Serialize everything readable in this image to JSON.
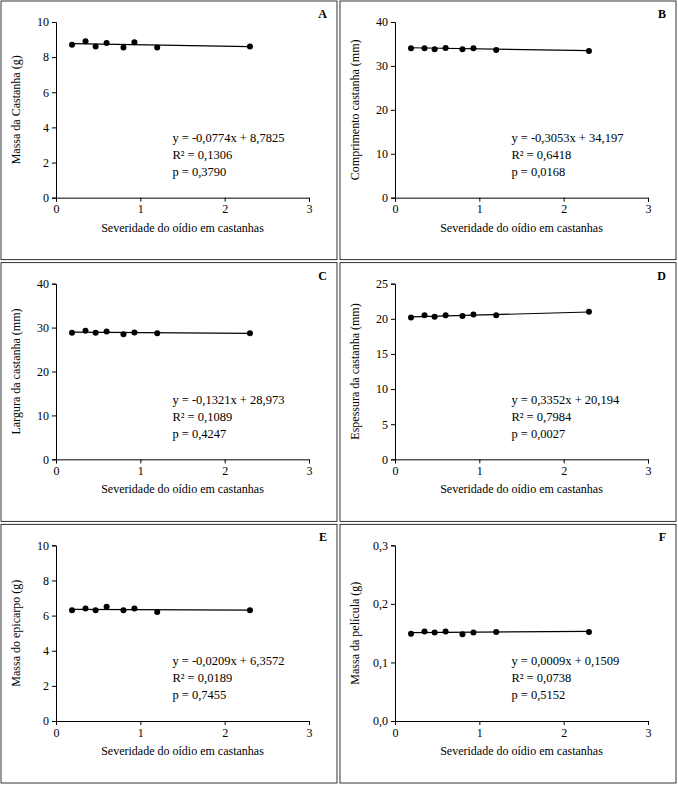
{
  "chart_data": [
    {
      "type": "scatter",
      "title": "A",
      "x_label": "Severidade do oídio em castanhas",
      "y_label": "Massa da Castanha (g)",
      "xlim": [
        0,
        3
      ],
      "xticks": [
        0,
        1,
        2,
        3
      ],
      "ylim": [
        0,
        10
      ],
      "yticks": [
        0,
        2,
        4,
        6,
        8,
        10
      ],
      "annotations": [
        "y = -0,0774x + 8,7825",
        "R² = 0,1306",
        "p = 0,3790"
      ],
      "series": [
        {
          "type": "scatter",
          "marker": "circle",
          "color": "#000000",
          "x": [
            0.19,
            0.35,
            0.47,
            0.6,
            0.8,
            0.93,
            1.2,
            2.3
          ],
          "values": [
            8.7,
            8.9,
            8.6,
            8.8,
            8.55,
            8.85,
            8.55,
            8.6
          ]
        },
        {
          "type": "line",
          "line_style": "solid",
          "color": "#000000",
          "x": [
            0.19,
            2.3
          ],
          "values": [
            8.77,
            8.6
          ]
        }
      ]
    },
    {
      "type": "scatter",
      "title": "B",
      "x_label": "Severidade do oídio em castanhas",
      "y_label": "Comprimento castanha (mm)",
      "xlim": [
        0,
        3
      ],
      "xticks": [
        0,
        1,
        2,
        3
      ],
      "ylim": [
        0,
        40
      ],
      "yticks": [
        0,
        10,
        20,
        30,
        40
      ],
      "annotations": [
        "y = -0,3053x + 34,197",
        "R² = 0,6418",
        "p = 0,0168"
      ],
      "series": [
        {
          "type": "scatter",
          "marker": "circle",
          "color": "#000000",
          "x": [
            0.19,
            0.35,
            0.47,
            0.6,
            0.8,
            0.93,
            1.2,
            2.3
          ],
          "values": [
            34.0,
            34.0,
            33.8,
            34.1,
            33.8,
            34.0,
            33.6,
            33.4
          ]
        },
        {
          "type": "line",
          "line_style": "solid",
          "color": "#000000",
          "x": [
            0.19,
            2.3
          ],
          "values": [
            34.14,
            33.49
          ]
        }
      ]
    },
    {
      "type": "scatter",
      "title": "C",
      "x_label": "Severidade do oídio em castanhas",
      "y_label": "Largura da castanha (mm)",
      "xlim": [
        0,
        3
      ],
      "xticks": [
        0,
        1,
        2,
        3
      ],
      "ylim": [
        0,
        40
      ],
      "yticks": [
        0,
        10,
        20,
        30,
        40
      ],
      "annotations": [
        "y = -0,1321x + 28,973",
        "R² = 0,1089",
        "p = 0,4247"
      ],
      "series": [
        {
          "type": "scatter",
          "marker": "circle",
          "color": "#000000",
          "x": [
            0.19,
            0.35,
            0.47,
            0.6,
            0.8,
            0.93,
            1.2,
            2.3
          ],
          "values": [
            28.8,
            29.3,
            28.8,
            29.1,
            28.5,
            28.9,
            28.7,
            28.7
          ]
        },
        {
          "type": "line",
          "line_style": "solid",
          "color": "#000000",
          "x": [
            0.19,
            2.3
          ],
          "values": [
            28.95,
            28.67
          ]
        }
      ]
    },
    {
      "type": "scatter",
      "title": "D",
      "x_label": "Severidade do oídio em castanhas",
      "y_label": "Espessura da castanha (mm)",
      "xlim": [
        0,
        3
      ],
      "xticks": [
        0,
        1,
        2,
        3
      ],
      "ylim": [
        0,
        25
      ],
      "yticks": [
        0,
        5,
        10,
        15,
        20,
        25
      ],
      "annotations": [
        "y = 0,3352x + 20,194",
        "R² = 0,7984",
        "p = 0,0027"
      ],
      "series": [
        {
          "type": "scatter",
          "marker": "circle",
          "color": "#000000",
          "x": [
            0.19,
            0.35,
            0.47,
            0.6,
            0.8,
            0.93,
            1.2,
            2.3
          ],
          "values": [
            20.2,
            20.5,
            20.3,
            20.5,
            20.4,
            20.6,
            20.5,
            21.0
          ]
        },
        {
          "type": "line",
          "line_style": "solid",
          "color": "#000000",
          "x": [
            0.19,
            2.3
          ],
          "values": [
            20.26,
            20.97
          ]
        }
      ]
    },
    {
      "type": "scatter",
      "title": "E",
      "x_label": "Severidade do oídio em castanhas",
      "y_label": "Massa do epicarpo (g)",
      "xlim": [
        0,
        3
      ],
      "xticks": [
        0,
        1,
        2,
        3
      ],
      "ylim": [
        0,
        10
      ],
      "yticks": [
        0,
        2,
        4,
        6,
        8,
        10
      ],
      "annotations": [
        "y = -0,0209x + 6,3572",
        "R² = 0,0189",
        "p = 0,7455"
      ],
      "series": [
        {
          "type": "scatter",
          "marker": "circle",
          "color": "#000000",
          "x": [
            0.19,
            0.35,
            0.47,
            0.6,
            0.8,
            0.93,
            1.2,
            2.3
          ],
          "values": [
            6.3,
            6.4,
            6.3,
            6.5,
            6.3,
            6.4,
            6.2,
            6.3
          ]
        },
        {
          "type": "line",
          "line_style": "solid",
          "color": "#000000",
          "x": [
            0.19,
            2.3
          ],
          "values": [
            6.35,
            6.31
          ]
        }
      ]
    },
    {
      "type": "scatter",
      "title": "F",
      "x_label": "Severidade do oídio em castanhas",
      "y_label": "Massa da película (g)",
      "xlim": [
        0,
        3
      ],
      "xticks": [
        0,
        1,
        2,
        3
      ],
      "ylim": [
        0,
        0.3
      ],
      "yticks": [
        {
          "value": 0,
          "label": "0,0"
        },
        {
          "value": 0.1,
          "label": "0,1"
        },
        {
          "value": 0.2,
          "label": "0,2"
        },
        {
          "value": 0.3,
          "label": "0,3"
        }
      ],
      "annotations": [
        "y = 0,0009x + 0,1509",
        "R² = 0,0738",
        "p = 0,5152"
      ],
      "series": [
        {
          "type": "scatter",
          "marker": "circle",
          "color": "#000000",
          "x": [
            0.19,
            0.35,
            0.47,
            0.6,
            0.8,
            0.93,
            1.2,
            2.3
          ],
          "values": [
            0.149,
            0.153,
            0.151,
            0.153,
            0.148,
            0.151,
            0.152,
            0.152
          ]
        },
        {
          "type": "line",
          "line_style": "solid",
          "color": "#000000",
          "x": [
            0.19,
            2.3
          ],
          "values": [
            0.151,
            0.153
          ]
        }
      ]
    }
  ]
}
